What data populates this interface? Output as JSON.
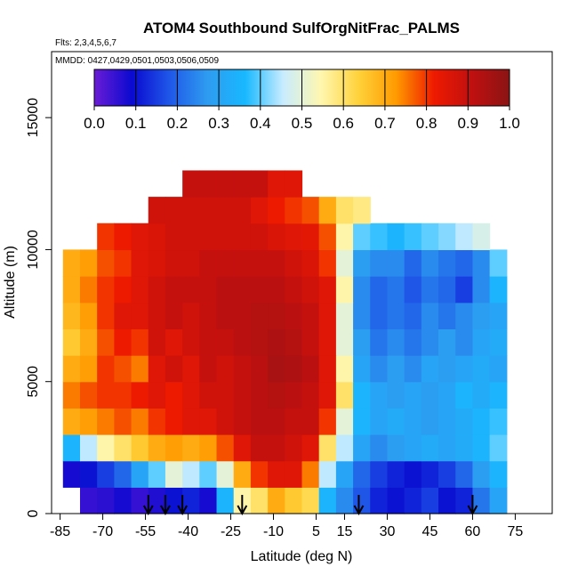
{
  "chart_data": {
    "type": "heatmap",
    "title": "ATOM4 Southbound SulfOrgNitFrac_PALMS",
    "subtitle_flights": "Flts: 2,3,4,5,6,7",
    "subtitle_dates": "MMDD: 0427,0429,0501,0503,0506,0509",
    "xlabel": "Latitude (deg N)",
    "ylabel": "Altitude (m)",
    "xlim": [
      -88,
      88
    ],
    "ylim": [
      0,
      17500
    ],
    "x_ticks": [
      -85,
      -70,
      -55,
      -40,
      -25,
      -10,
      5,
      15,
      30,
      45,
      60,
      75
    ],
    "y_ticks": [
      0,
      5000,
      10000,
      15000
    ],
    "colorbar": {
      "min": 0.0,
      "max": 1.0,
      "ticks": [
        "0.0",
        "0.1",
        "0.2",
        "0.3",
        "0.4",
        "0.5",
        "0.6",
        "0.7",
        "0.8",
        "0.9",
        "1.0"
      ],
      "colors": [
        "#6a1cd6",
        "#0a0ad0",
        "#1f58e8",
        "#2e9cf0",
        "#18b8ff",
        "#c8ecff",
        "#fff7b0",
        "#ffd23a",
        "#ff9a00",
        "#ee1a00",
        "#c01010",
        "#8a1414"
      ]
    },
    "arrows_latitude": [
      -54,
      -48,
      -42,
      -21,
      20,
      60
    ],
    "lat_bins": [
      -81,
      -75,
      -69,
      -63,
      -57,
      -51,
      -45,
      -39,
      -33,
      -27,
      -21,
      -15,
      -9,
      -3,
      3,
      9,
      15,
      21,
      27,
      33,
      39,
      45,
      51,
      57,
      63,
      69
    ],
    "alt_bins": [
      500,
      1500,
      2500,
      3500,
      4500,
      5500,
      6500,
      7500,
      8500,
      9500,
      10500,
      11500,
      12500
    ],
    "values": [
      [
        null,
        0.05,
        0.06,
        0.08,
        0.05,
        0.07,
        0.1,
        0.12,
        0.08,
        0.35,
        0.55,
        0.6,
        0.7,
        0.65,
        0.62,
        0.35,
        0.25,
        0.18,
        0.12,
        0.1,
        0.12,
        0.15,
        0.1,
        0.12,
        0.22,
        0.3
      ],
      [
        0.08,
        0.1,
        0.15,
        0.2,
        0.3,
        0.4,
        0.5,
        0.45,
        0.4,
        0.5,
        0.7,
        0.8,
        0.85,
        0.85,
        0.75,
        0.45,
        0.3,
        0.2,
        0.15,
        0.12,
        0.1,
        0.12,
        0.15,
        0.2,
        0.28,
        0.35
      ],
      [
        0.35,
        0.45,
        0.55,
        0.6,
        0.65,
        0.7,
        0.72,
        0.7,
        0.72,
        0.78,
        0.85,
        0.9,
        0.9,
        0.88,
        0.85,
        0.6,
        0.45,
        0.3,
        0.25,
        0.28,
        0.3,
        0.32,
        0.3,
        0.32,
        0.35,
        0.4
      ],
      [
        0.7,
        0.72,
        0.75,
        0.78,
        0.75,
        0.8,
        0.82,
        0.85,
        0.85,
        0.88,
        0.9,
        0.92,
        0.92,
        0.9,
        0.9,
        0.8,
        0.5,
        0.35,
        0.3,
        0.32,
        0.3,
        0.28,
        0.3,
        0.32,
        0.35,
        0.38
      ],
      [
        0.75,
        0.78,
        0.8,
        0.8,
        0.82,
        0.85,
        0.82,
        0.85,
        0.88,
        0.88,
        0.9,
        0.92,
        0.93,
        0.92,
        0.9,
        0.85,
        0.6,
        0.35,
        0.3,
        0.28,
        0.3,
        0.28,
        0.3,
        0.35,
        0.32,
        0.35
      ],
      [
        0.7,
        0.72,
        0.8,
        0.78,
        0.75,
        0.85,
        0.88,
        0.85,
        0.9,
        0.88,
        0.9,
        0.92,
        0.95,
        0.94,
        0.92,
        0.85,
        0.55,
        0.3,
        0.25,
        0.28,
        0.25,
        0.3,
        0.28,
        0.3,
        0.32,
        0.3
      ],
      [
        0.65,
        0.7,
        0.78,
        0.82,
        0.8,
        0.88,
        0.85,
        0.88,
        0.9,
        0.9,
        0.92,
        0.93,
        0.94,
        0.93,
        0.9,
        0.85,
        0.5,
        0.28,
        0.22,
        0.25,
        0.22,
        0.25,
        0.28,
        0.25,
        0.3,
        0.32
      ],
      [
        0.68,
        0.72,
        0.8,
        0.85,
        0.85,
        0.88,
        0.9,
        0.88,
        0.9,
        0.92,
        0.92,
        0.93,
        0.93,
        0.92,
        0.9,
        0.85,
        0.5,
        0.25,
        0.2,
        0.22,
        0.2,
        0.25,
        0.22,
        0.25,
        0.28,
        0.3
      ],
      [
        0.7,
        0.75,
        0.8,
        0.82,
        0.85,
        0.88,
        0.9,
        0.9,
        0.9,
        0.92,
        0.92,
        0.92,
        0.92,
        0.9,
        0.88,
        0.85,
        0.55,
        0.25,
        0.2,
        0.22,
        0.18,
        0.22,
        0.2,
        0.15,
        0.25,
        0.35
      ],
      [
        0.7,
        0.72,
        0.78,
        0.8,
        0.85,
        0.86,
        0.88,
        0.88,
        0.9,
        0.9,
        0.9,
        0.9,
        0.9,
        0.88,
        0.86,
        0.8,
        0.5,
        0.28,
        0.25,
        0.25,
        0.2,
        0.25,
        0.22,
        0.2,
        0.25,
        0.4
      ],
      [
        null,
        null,
        0.8,
        0.82,
        0.85,
        0.86,
        0.88,
        0.88,
        0.88,
        0.88,
        0.88,
        0.88,
        0.86,
        0.85,
        0.84,
        0.78,
        0.55,
        0.4,
        0.38,
        0.35,
        0.38,
        0.4,
        0.42,
        0.45,
        0.48,
        null
      ],
      [
        null,
        null,
        null,
        null,
        null,
        0.88,
        0.88,
        0.88,
        0.88,
        0.88,
        0.88,
        0.85,
        0.82,
        0.8,
        0.78,
        0.7,
        0.6,
        0.58,
        null,
        null,
        null,
        null,
        null,
        null,
        null,
        null
      ],
      [
        null,
        null,
        null,
        null,
        null,
        null,
        null,
        0.9,
        0.9,
        0.9,
        0.9,
        0.9,
        0.85,
        0.85,
        null,
        null,
        null,
        null,
        null,
        null,
        null,
        null,
        null,
        null,
        null,
        null
      ]
    ]
  }
}
